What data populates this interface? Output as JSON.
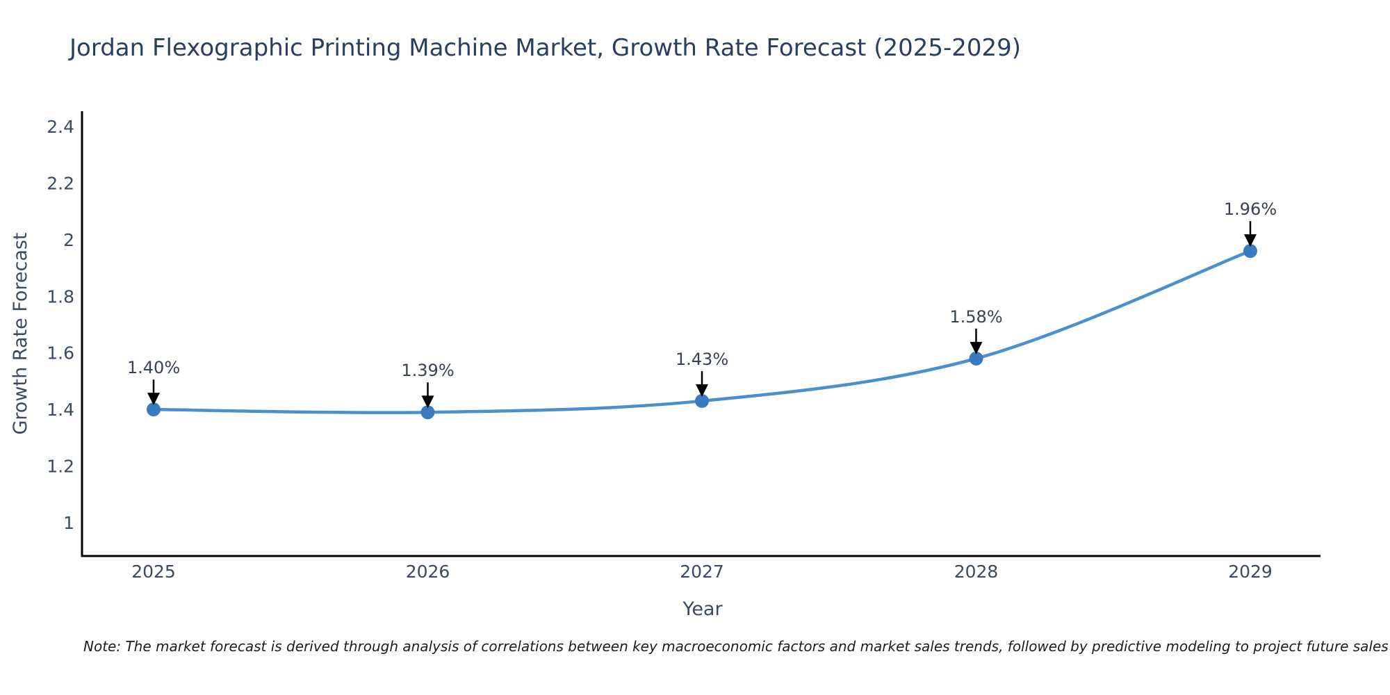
{
  "title": "Jordan Flexographic Printing Machine Market, Growth Rate Forecast (2025-2029)",
  "note": "Note: The market forecast is derived through analysis of correlations between key macroeconomic factors and market sales trends, followed by predictive modeling to project future sales",
  "chart_data": {
    "type": "line",
    "title": "Jordan Flexographic Printing Machine Market, Growth Rate Forecast (2025-2029)",
    "xlabel": "Year",
    "ylabel": "Growth Rate Forecast",
    "categories": [
      2025,
      2026,
      2027,
      2028,
      2029
    ],
    "x_tick_labels": [
      "2025",
      "2026",
      "2027",
      "2028",
      "2029"
    ],
    "values": [
      1.4,
      1.39,
      1.43,
      1.58,
      1.96
    ],
    "point_labels": [
      "1.40%",
      "1.39%",
      "1.43%",
      "1.58%",
      "1.96%"
    ],
    "y_ticks": [
      1,
      1.2,
      1.4,
      1.6,
      1.8,
      2,
      2.2,
      2.4
    ],
    "y_tick_labels": [
      "1",
      "1.2",
      "1.4",
      "1.6",
      "1.8",
      "2",
      "2.2",
      "2.4"
    ],
    "ylim": [
      0.88,
      2.45
    ],
    "grid": false,
    "legend": false,
    "annotation_style": "value labels above points with downward black arrows",
    "colors": {
      "line": "#4a90cd",
      "marker": "#3a7abf",
      "axis": "#000000",
      "arrow": "#000000",
      "title_text": "#2a3f5f",
      "tick_text": "#3b4a63",
      "annotation_text": "#384252"
    }
  }
}
